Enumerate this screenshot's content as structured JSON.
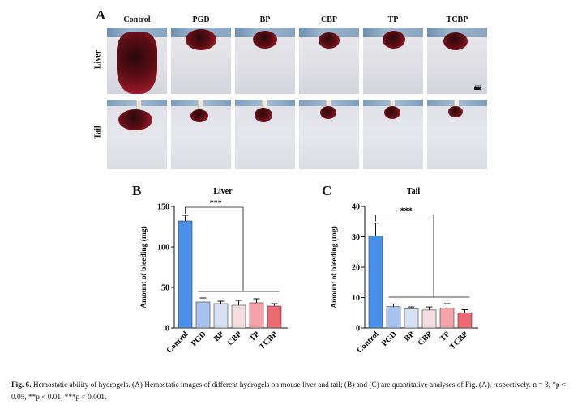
{
  "panel_a": {
    "letter": "A",
    "columns": [
      "Control",
      "PGD",
      "BP",
      "CBP",
      "TP",
      "TCBP"
    ],
    "rows": [
      "Liver",
      "Tail"
    ],
    "scale_label": "1mm"
  },
  "chart_data": [
    {
      "type": "bar",
      "panel": "B",
      "title": "Liver",
      "categories": [
        "Control",
        "PGD",
        "BP",
        "CBP",
        "TP",
        "TCBP"
      ],
      "values": [
        132,
        32,
        30,
        28,
        31,
        27
      ],
      "errors": [
        7,
        5,
        3,
        6,
        5,
        3
      ],
      "ylabel": "Amount of bleeding (mg)",
      "xlabel": "",
      "ylim": [
        0,
        150
      ],
      "yticks": [
        0,
        50,
        100,
        150
      ],
      "significance": "***",
      "colors": [
        "#4a8fe8",
        "#a9c3ef",
        "#d6e2f4",
        "#f3dde0",
        "#f4a3a8",
        "#ee6a72"
      ]
    },
    {
      "type": "bar",
      "panel": "C",
      "title": "Tail",
      "categories": [
        "Control",
        "PGD",
        "BP",
        "CBP",
        "TP",
        "TCBP"
      ],
      "values": [
        30.3,
        7.0,
        6.3,
        5.9,
        6.6,
        5.0
      ],
      "errors": [
        4.2,
        0.9,
        0.6,
        1.0,
        1.4,
        1.0
      ],
      "ylabel": "Amount of bleeding (mg)",
      "xlabel": "",
      "ylim": [
        0,
        40
      ],
      "yticks": [
        0,
        10,
        20,
        30,
        40
      ],
      "significance": "***",
      "colors": [
        "#4a8fe8",
        "#a9c3ef",
        "#d6e2f4",
        "#f3dde0",
        "#f4a3a8",
        "#ee6a72"
      ]
    }
  ],
  "caption": {
    "label": "Fig. 6.",
    "text": "Hemostatic ability of hydrogels. (A) Hemostatic images of different hydrogels on mouse liver and tail; (B) and (C) are quantitative analyses of Fig. (A), respectively. n = 3, *p < 0.05, **p < 0.01, ***p < 0.001."
  }
}
